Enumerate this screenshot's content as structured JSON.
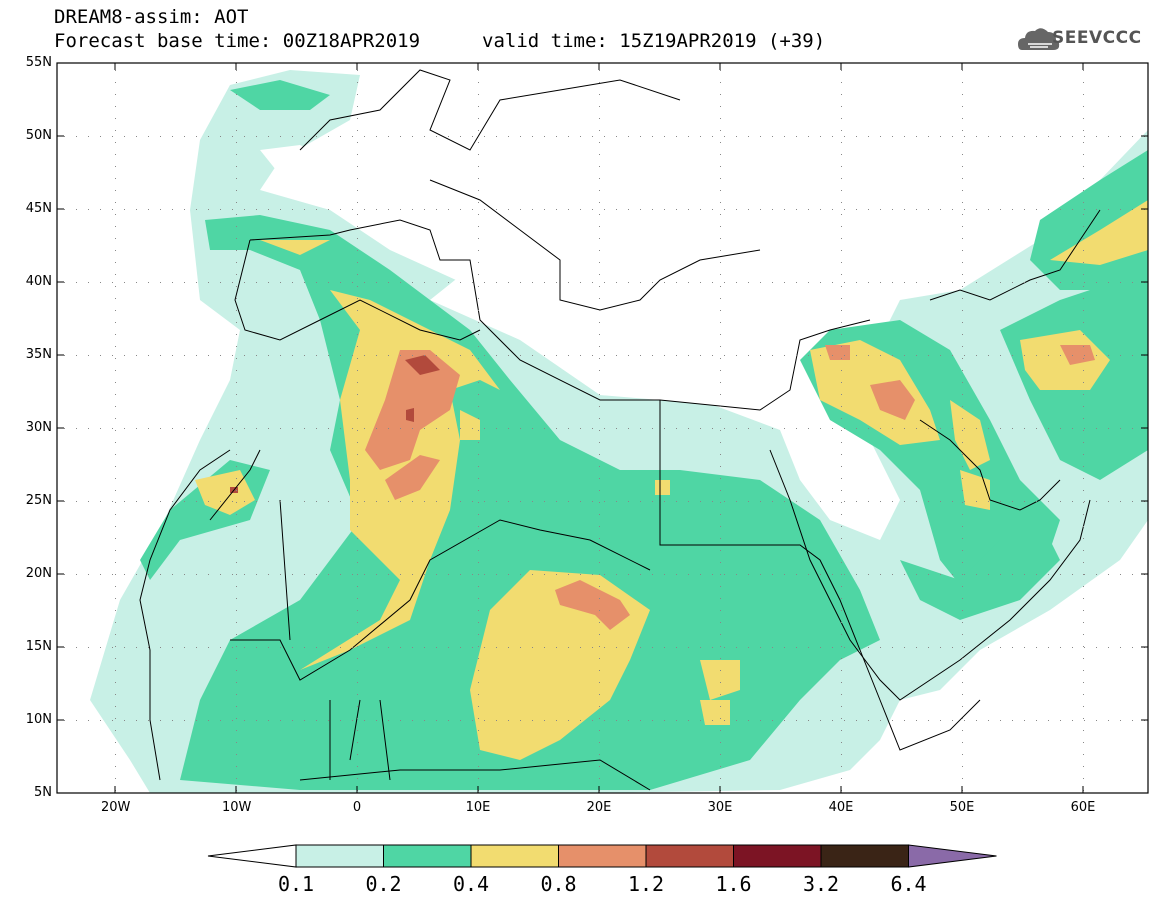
{
  "header": {
    "line1": "DREAM8-assim: AOT",
    "base_time": "Forecast base time: 00Z18APR2019",
    "valid_time": "valid time: 15Z19APR2019 (+39)"
  },
  "logo": {
    "text": "SEEVCCC",
    "icon": "cloud-icon"
  },
  "map": {
    "lat_labels": [
      "55N",
      "50N",
      "45N",
      "40N",
      "35N",
      "30N",
      "25N",
      "20N",
      "15N",
      "10N",
      "5N"
    ],
    "lon_labels": [
      "20W",
      "10W",
      "0",
      "10E",
      "20E",
      "30E",
      "40E",
      "50E",
      "60E"
    ]
  },
  "colorbar": {
    "labels": [
      "0.1",
      "0.2",
      "0.4",
      "0.8",
      "1.2",
      "1.6",
      "3.2",
      "6.4"
    ],
    "colors": [
      "#ffffff",
      "#c8f0e6",
      "#4fd6a4",
      "#f2dc70",
      "#e6906a",
      "#b24a3c",
      "#7c1424",
      "#3a2416",
      "#8a6aa8"
    ]
  }
}
